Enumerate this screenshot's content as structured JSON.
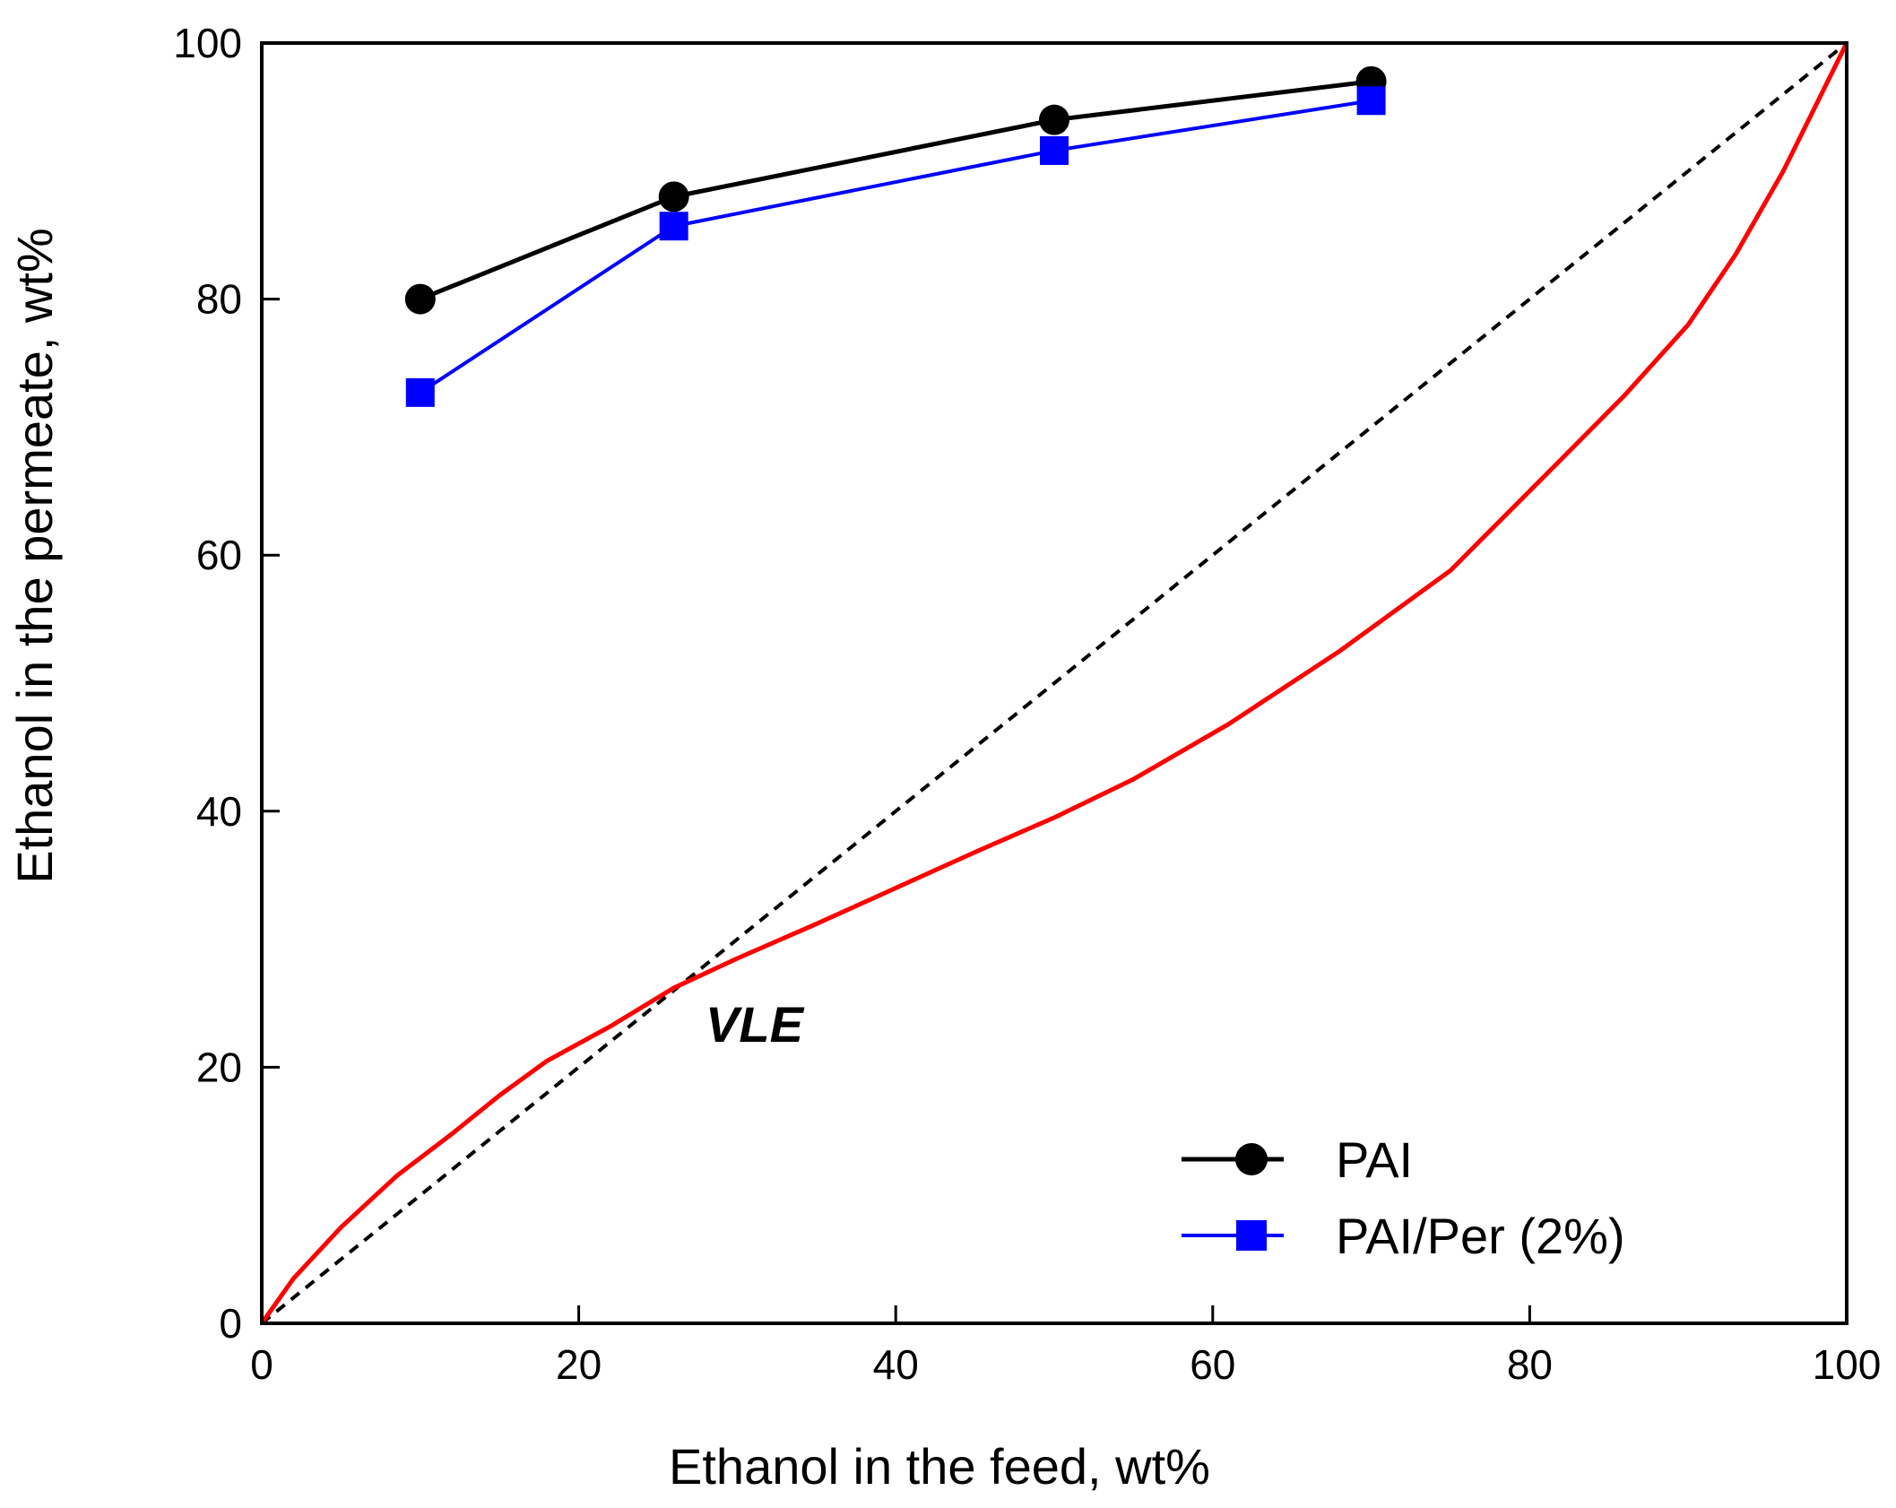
{
  "chart_data": {
    "type": "line",
    "title": "",
    "xlabel": "Ethanol in the feed, wt%",
    "ylabel": "Ethanol in the permeate, wt%",
    "xlim": [
      0,
      100
    ],
    "ylim": [
      0,
      100
    ],
    "xticks": [
      0,
      20,
      40,
      60,
      80,
      100
    ],
    "yticks": [
      0,
      20,
      40,
      60,
      80,
      100
    ],
    "legend_position": "bottom-right",
    "series": [
      {
        "name": "PAI",
        "color": "#000000",
        "marker": "circle",
        "x": [
          10,
          26,
          50,
          70
        ],
        "y": [
          80,
          88,
          94,
          97
        ]
      },
      {
        "name": "PAI/Per (2%)",
        "color": "#0000ff",
        "marker": "square",
        "x": [
          10,
          26,
          50,
          70
        ],
        "y": [
          72.7,
          85.7,
          91.6,
          95.5
        ]
      }
    ],
    "reference_lines": [
      {
        "name": "diagonal",
        "color": "#000000",
        "style": "dashed",
        "x": [
          0,
          100
        ],
        "y": [
          0,
          100
        ]
      },
      {
        "name": "VLE",
        "color": "#ff0000",
        "style": "solid",
        "x": [
          0,
          2,
          5,
          8.5,
          12,
          15,
          18,
          22,
          26,
          30,
          35,
          40,
          45,
          50,
          55,
          61,
          68,
          75,
          82,
          86,
          90,
          93,
          96,
          98,
          100
        ],
        "y": [
          0,
          3.5,
          7.5,
          11.5,
          14.8,
          17.8,
          20.5,
          23.2,
          26.2,
          28.5,
          31.2,
          34,
          36.8,
          39.5,
          42.5,
          46.8,
          52.5,
          58.8,
          67.5,
          72.5,
          78,
          83.5,
          90,
          95,
          100
        ]
      }
    ],
    "annotations": [
      {
        "text": "VLE",
        "x": 28,
        "y": 22
      }
    ]
  }
}
